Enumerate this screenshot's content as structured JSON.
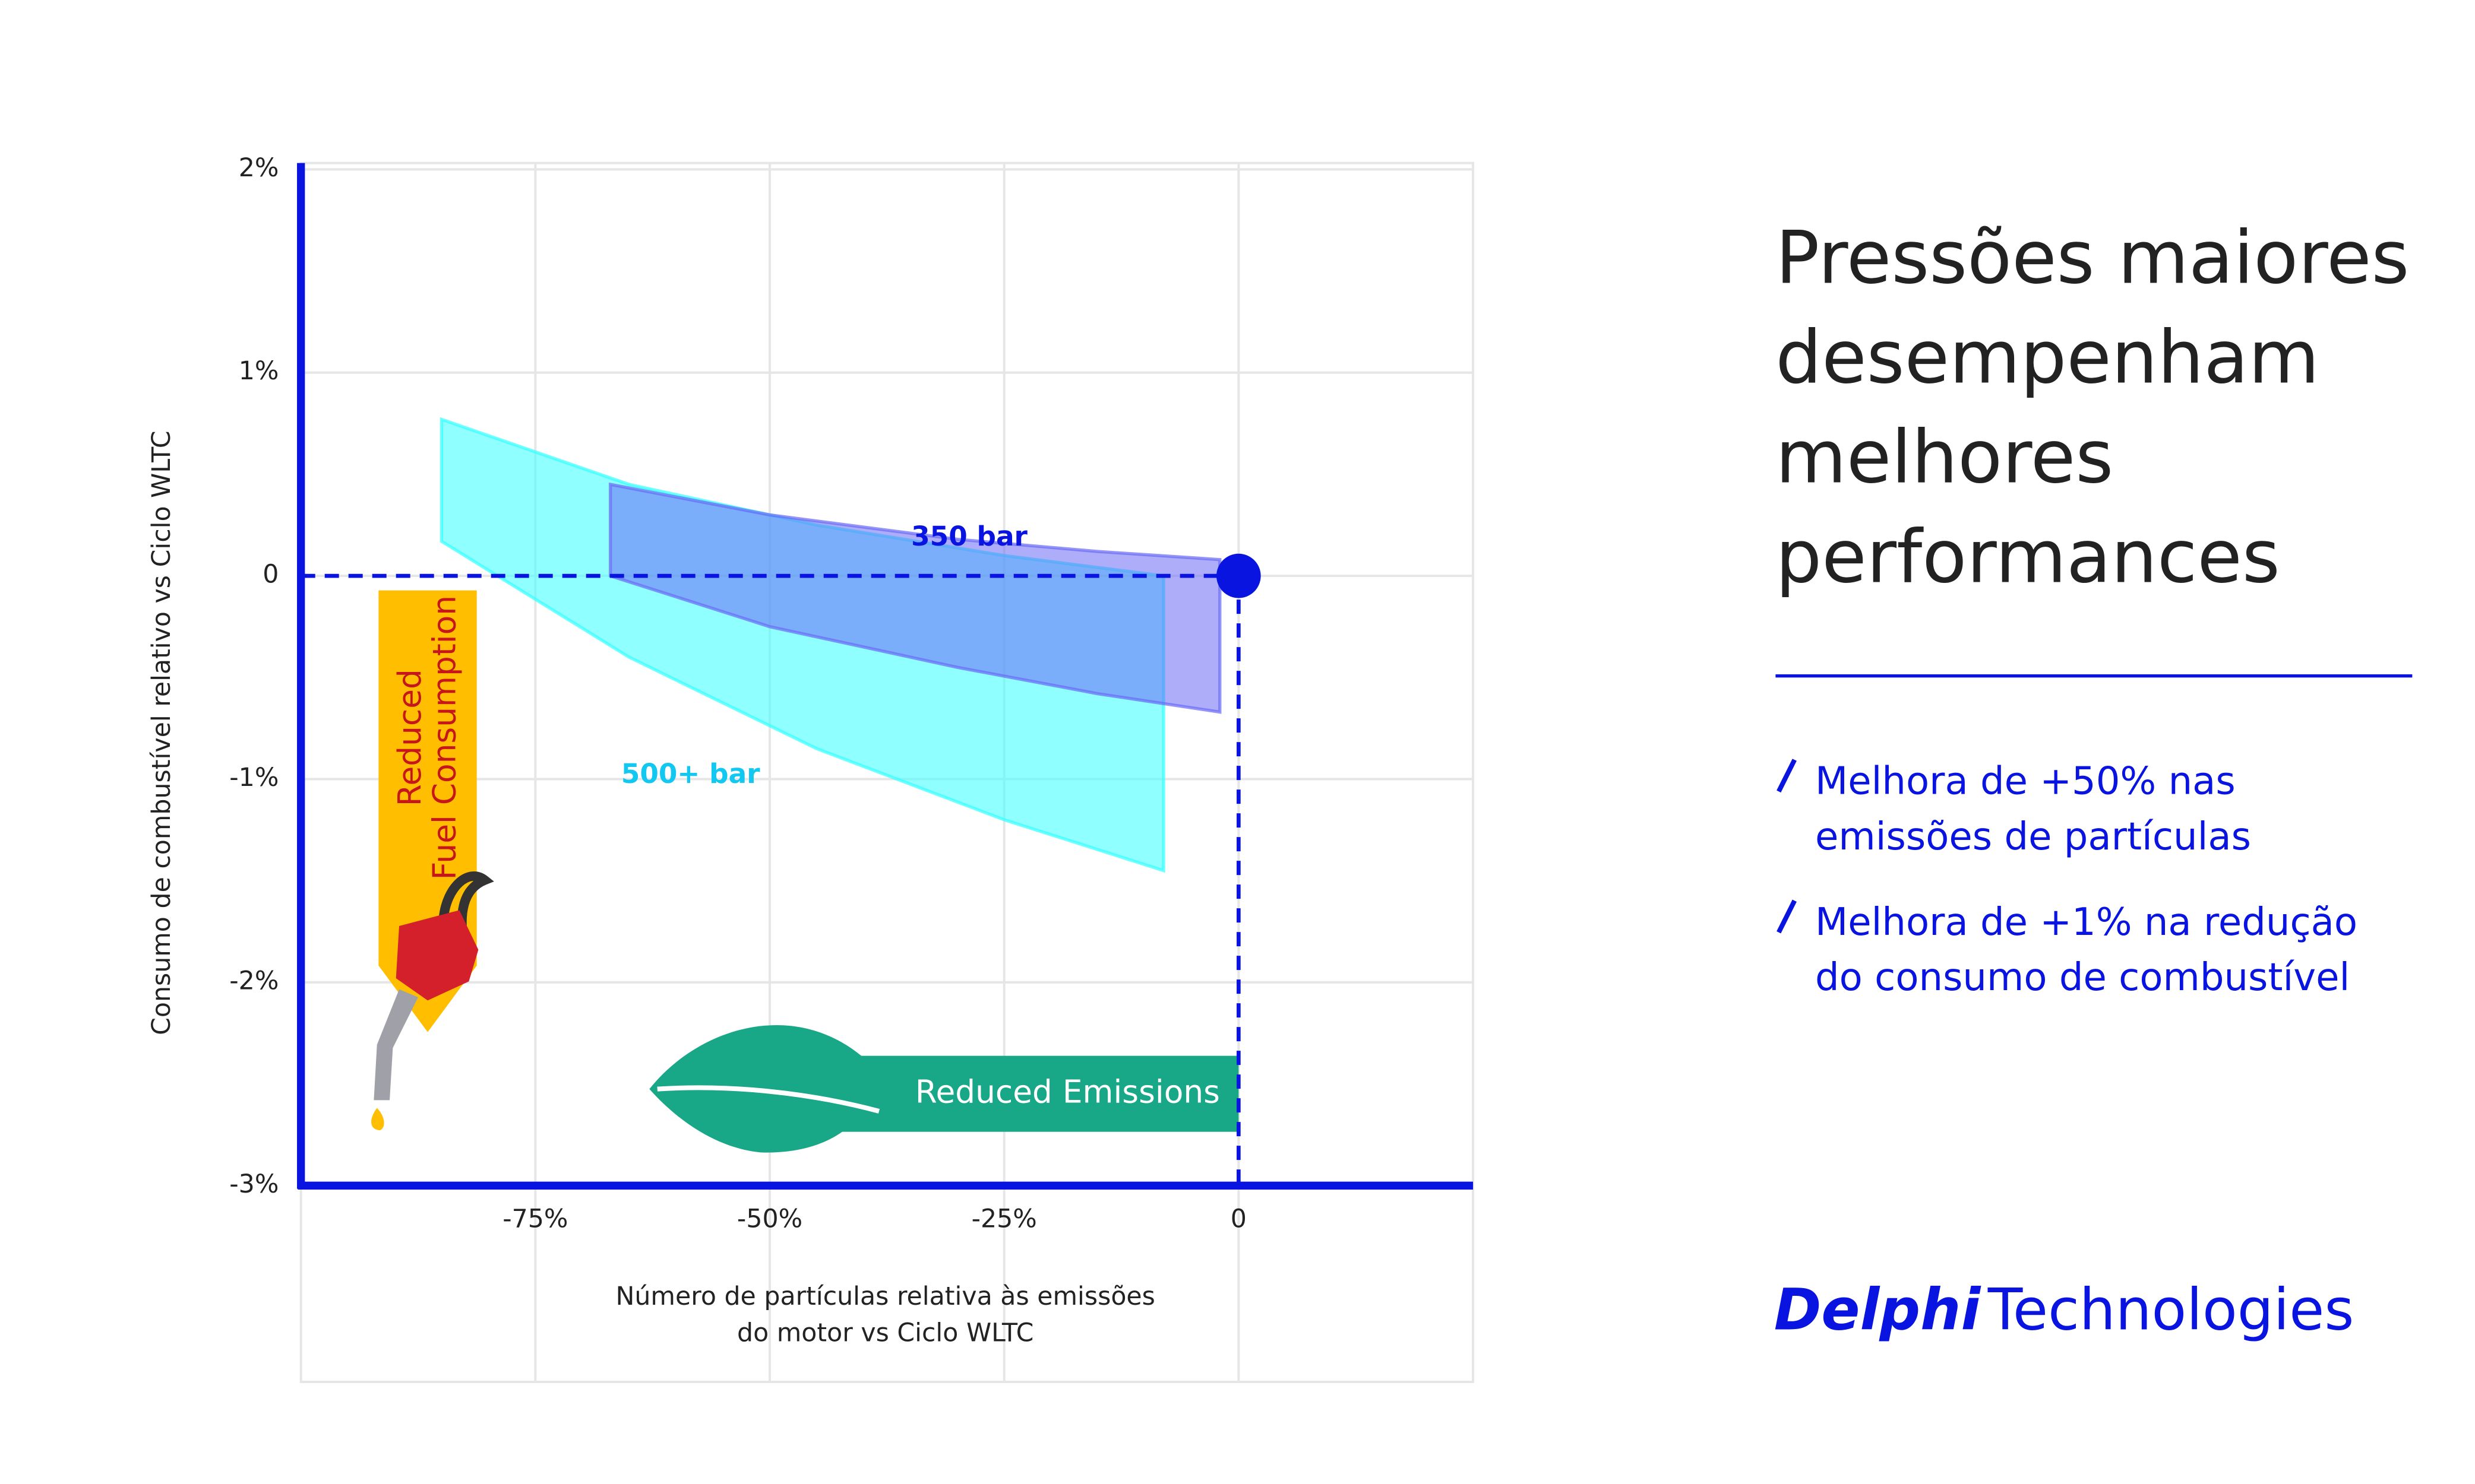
{
  "chart_data": {
    "type": "band",
    "y_label": "Consumo de combustível relativo vs Ciclo WLTC",
    "x_label": [
      "Número de partículas relativa às emissões",
      "do motor vs Ciclo WLTC"
    ],
    "xlim": [
      -100,
      25
    ],
    "xticks": [
      {
        "value": -75,
        "label": "-75%"
      },
      {
        "value": -50,
        "label": "-50%"
      },
      {
        "value": -25,
        "label": "-25%"
      },
      0
    ],
    "ylim": [
      -3,
      2
    ],
    "yticks": [
      {
        "value": 2,
        "label": "2%"
      },
      {
        "value": 1,
        "label": "1%"
      },
      0,
      {
        "value": -1,
        "label": "-1%"
      },
      {
        "value": -2,
        "label": "-2%"
      },
      {
        "value": -3,
        "label": "-3%"
      }
    ],
    "grid": true,
    "series": [
      {
        "name": "500+ bar",
        "color": "#33ffff",
        "x": [
          -85,
          -65,
          -45,
          -25,
          -8
        ],
        "upper": [
          0.77,
          0.45,
          0.25,
          0.1,
          0.0
        ],
        "lower": [
          0.17,
          -0.4,
          -0.85,
          -1.2,
          -1.45
        ]
      },
      {
        "name": "350 bar",
        "color": "#6a6af5",
        "x": [
          -67,
          -50,
          -30,
          -15,
          -2
        ],
        "upper": [
          0.45,
          0.3,
          0.18,
          0.12,
          0.08
        ],
        "lower": [
          0.0,
          -0.25,
          -0.45,
          -0.58,
          -0.67
        ]
      }
    ],
    "reference_point": {
      "x": 0,
      "y": 0
    },
    "annotations": [
      "Reduced",
      "Fuel Consumption",
      "Reduced Emissions"
    ]
  },
  "panel": {
    "heading": [
      "Pressões maiores",
      "desempenham",
      "melhores",
      "performances"
    ],
    "bullets": [
      [
        "Melhora de +50% nas",
        "emissões de partículas"
      ],
      [
        "Melhora de +1% na redução",
        "do consumo de combustível"
      ]
    ],
    "brand": [
      "Delphi",
      "Technologies"
    ]
  }
}
